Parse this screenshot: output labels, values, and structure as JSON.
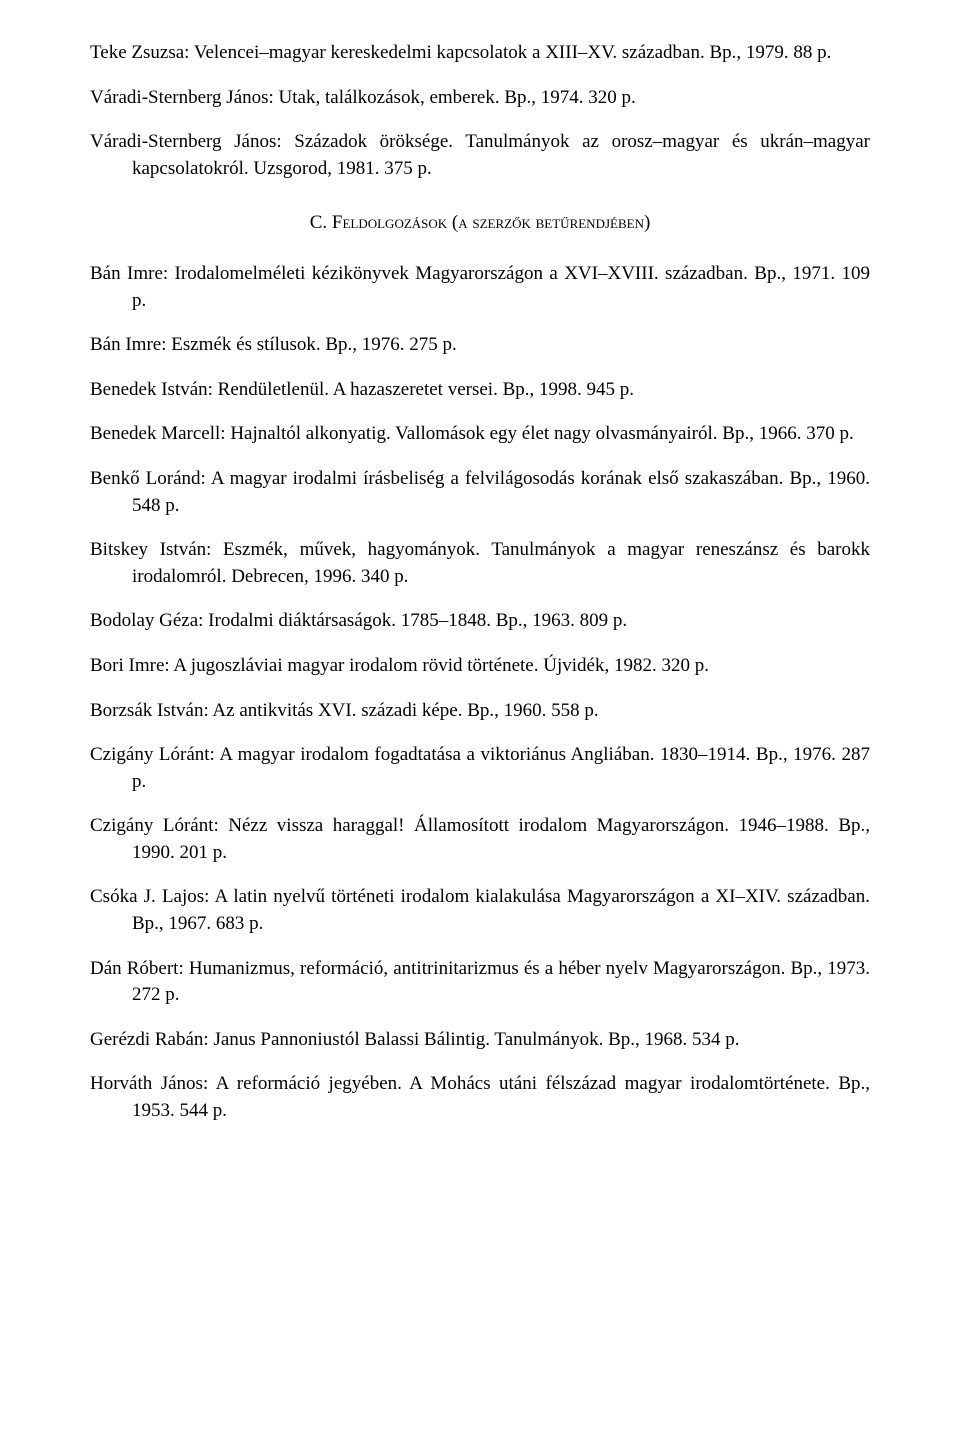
{
  "entries_top": [
    "Teke Zsuzsa: Velencei–magyar kereskedelmi kapcsolatok a XIII–XV. században. Bp., 1979. 88 p.",
    "Váradi-Sternberg János: Utak, találkozások, emberek. Bp., 1974. 320 p.",
    "Váradi-Sternberg János: Századok öröksége. Tanulmányok az orosz–magyar és ukrán–magyar kapcsolatokról. Uzsgorod, 1981. 375 p."
  ],
  "section_heading_prefix": "C. F",
  "section_heading_smallcaps": "eldolgozások (a szerzők betűrendjében)",
  "entries_bottom": [
    "Bán Imre: Irodalomelméleti kézikönyvek Magyarországon a XVI–XVIII. században. Bp., 1971. 109 p.",
    "Bán Imre: Eszmék és stílusok. Bp., 1976. 275 p.",
    "Benedek István: Rendületlenül. A hazaszeretet versei. Bp., 1998. 945 p.",
    "Benedek Marcell: Hajnaltól alkonyatig. Vallomások egy élet nagy olvasmányairól. Bp., 1966. 370 p.",
    "Benkő Loránd: A magyar irodalmi írásbeliség a felvilágosodás korának első szakaszában. Bp., 1960. 548 p.",
    "Bitskey István: Eszmék, művek, hagyományok. Tanulmányok a magyar reneszánsz és barokk irodalomról. Debrecen, 1996. 340 p.",
    "Bodolay Géza: Irodalmi diáktársaságok. 1785–1848. Bp., 1963. 809 p.",
    "Bori Imre: A jugoszláviai magyar irodalom rövid története. Újvidék, 1982. 320 p.",
    "Borzsák István: Az antikvitás XVI. századi képe. Bp., 1960. 558 p.",
    "Czigány Lóránt: A magyar irodalom fogadtatása a viktoriánus Angliában. 1830–1914. Bp., 1976. 287 p.",
    "Czigány Lóránt: Nézz vissza haraggal! Államosított irodalom Magyarországon. 1946–1988. Bp., 1990. 201 p.",
    "Csóka J. Lajos: A latin nyelvű történeti irodalom kialakulása Magyarországon a XI–XIV. században. Bp., 1967. 683 p.",
    "Dán Róbert: Humanizmus, reformáció, antitrinitarizmus és a héber nyelv Magyarországon. Bp., 1973. 272 p.",
    "Gerézdi Rabán: Janus Pannoniustól Balassi Bálintig. Tanulmányok. Bp., 1968. 534 p.",
    "Horváth János: A reformáció jegyében. A Mohács utáni félszázad magyar irodalomtörténete. Bp., 1953. 544 p."
  ]
}
